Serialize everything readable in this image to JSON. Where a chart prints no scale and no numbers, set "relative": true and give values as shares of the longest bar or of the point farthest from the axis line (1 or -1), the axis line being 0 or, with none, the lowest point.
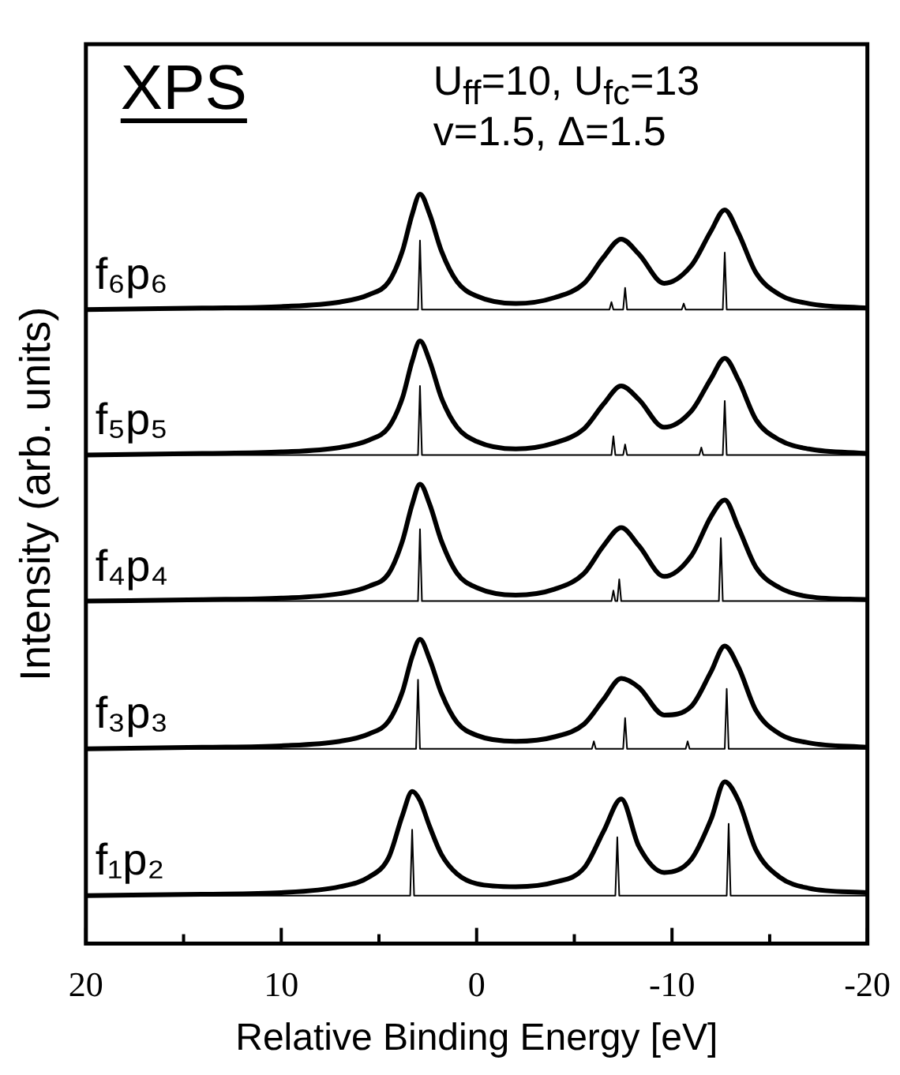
{
  "chart_data": {
    "type": "line",
    "relative": true,
    "title": "XPS",
    "xlabel": "Relative Binding Energy [eV]",
    "ylabel": "Intensity (arb. units)",
    "annotations": [
      "U$_{ff}$=10, U$_{fc}$=13",
      "v=1.5, Δ=1.5"
    ],
    "xlim": [
      20,
      -20
    ],
    "xticks": [
      20,
      {
        "value": 15,
        "label": null
      },
      10,
      {
        "value": 5,
        "label": null
      },
      0,
      {
        "value": -5,
        "label": null
      },
      -10,
      {
        "value": -15,
        "label": null
      },
      -20
    ],
    "grid": false,
    "legend": false,
    "marker": "none",
    "line_style": "solid",
    "series": [
      {
        "name": "f₆p₆",
        "color": "#000000",
        "x": [
          20,
          14,
          10,
          7,
          5.5,
          4.5,
          3.8,
          3.3,
          2.9,
          2.4,
          1.8,
          1,
          0,
          -2,
          -4,
          -5.5,
          -6.5,
          -7.4,
          -8.3,
          -9.6,
          -11,
          -12,
          -12.7,
          -13.4,
          -14.3,
          -15.5,
          -17,
          -20
        ],
        "values": [
          0.846,
          0.848,
          0.85,
          0.856,
          0.866,
          0.883,
          0.924,
          0.973,
          1.0,
          0.973,
          0.924,
          0.883,
          0.864,
          0.854,
          0.862,
          0.881,
          0.916,
          0.94,
          0.92,
          0.881,
          0.905,
          0.951,
          0.979,
          0.948,
          0.895,
          0.866,
          0.854,
          0.848
        ]
      },
      {
        "color": "#000000",
        "x": [
          20,
          3.0,
          2.9,
          2.8,
          -6.8,
          -6.9,
          -7.0,
          -7.5,
          -7.6,
          -7.7,
          -10.5,
          -10.6,
          -10.7,
          -12.6,
          -12.7,
          -12.8,
          -20
        ],
        "values": [
          0.846,
          0.846,
          0.938,
          0.846,
          0.846,
          0.856,
          0.846,
          0.846,
          0.875,
          0.846,
          0.846,
          0.854,
          0.846,
          0.846,
          0.922,
          0.846,
          0.846
        ]
      },
      {
        "name": "f₅p₅",
        "color": "#000000",
        "x": [
          20,
          14,
          10,
          7,
          5.5,
          4.5,
          3.8,
          3.3,
          2.9,
          2.4,
          1.8,
          1,
          0,
          -2,
          -4,
          -5.5,
          -6.5,
          -7.4,
          -8.3,
          -9.6,
          -11,
          -12,
          -12.7,
          -13.4,
          -14.3,
          -15.5,
          -17,
          -20
        ],
        "values": [
          0.652,
          0.654,
          0.656,
          0.662,
          0.672,
          0.689,
          0.728,
          0.777,
          0.804,
          0.777,
          0.728,
          0.689,
          0.67,
          0.66,
          0.668,
          0.687,
          0.72,
          0.744,
          0.726,
          0.689,
          0.711,
          0.754,
          0.781,
          0.752,
          0.699,
          0.672,
          0.66,
          0.654
        ]
      },
      {
        "color": "#000000",
        "x": [
          20,
          3.0,
          2.9,
          2.8,
          -6.9,
          -7.0,
          -7.1,
          -7.5,
          -7.6,
          -7.7,
          -11.4,
          -11.5,
          -11.6,
          -12.6,
          -12.7,
          -12.8,
          -20
        ],
        "values": [
          0.652,
          0.652,
          0.744,
          0.652,
          0.652,
          0.677,
          0.652,
          0.652,
          0.666,
          0.652,
          0.652,
          0.662,
          0.652,
          0.652,
          0.724,
          0.652,
          0.652
        ]
      },
      {
        "name": "f₄p₄",
        "color": "#000000",
        "x": [
          20,
          14,
          10,
          7,
          5.5,
          4.5,
          3.8,
          3.3,
          2.9,
          2.4,
          1.8,
          1,
          0,
          -2,
          -4,
          -5.5,
          -6.5,
          -7.4,
          -8.3,
          -9.6,
          -11,
          -12,
          -12.7,
          -13.4,
          -14.3,
          -15.5,
          -17,
          -20
        ],
        "values": [
          0.457,
          0.459,
          0.461,
          0.467,
          0.477,
          0.494,
          0.537,
          0.586,
          0.613,
          0.586,
          0.537,
          0.494,
          0.475,
          0.465,
          0.473,
          0.494,
          0.531,
          0.555,
          0.531,
          0.49,
          0.518,
          0.57,
          0.592,
          0.555,
          0.502,
          0.475,
          0.463,
          0.459
        ]
      },
      {
        "color": "#000000",
        "x": [
          20,
          3.0,
          2.9,
          2.8,
          -6.9,
          -7.0,
          -7.1,
          -7.2,
          -7.3,
          -7.4,
          -12.4,
          -12.5,
          -12.6,
          -20
        ],
        "values": [
          0.457,
          0.457,
          0.553,
          0.457,
          0.457,
          0.471,
          0.457,
          0.457,
          0.486,
          0.457,
          0.457,
          0.541,
          0.457,
          0.457
        ]
      },
      {
        "name": "f₃p₃",
        "color": "#000000",
        "x": [
          20,
          14,
          10,
          7,
          5.5,
          4.5,
          3.8,
          3.3,
          2.9,
          2.4,
          1.8,
          1,
          0,
          -2,
          -4,
          -5.5,
          -6.5,
          -7.4,
          -8.3,
          -9.6,
          -11,
          -12,
          -12.7,
          -13.4,
          -14.3,
          -15.5,
          -17,
          -20
        ],
        "values": [
          0.26,
          0.262,
          0.264,
          0.27,
          0.28,
          0.297,
          0.336,
          0.383,
          0.406,
          0.379,
          0.334,
          0.295,
          0.278,
          0.27,
          0.276,
          0.293,
          0.326,
          0.354,
          0.342,
          0.305,
          0.317,
          0.363,
          0.397,
          0.369,
          0.311,
          0.28,
          0.268,
          0.262
        ]
      },
      {
        "color": "#000000",
        "x": [
          20,
          3.1,
          3.0,
          2.9,
          -5.9,
          -6.0,
          -6.1,
          -7.5,
          -7.6,
          -7.7,
          -10.7,
          -10.8,
          -10.9,
          -12.7,
          -12.8,
          -12.9,
          -20
        ],
        "values": [
          0.26,
          0.26,
          0.352,
          0.26,
          0.26,
          0.27,
          0.26,
          0.26,
          0.301,
          0.26,
          0.26,
          0.27,
          0.26,
          0.26,
          0.34,
          0.26,
          0.26
        ]
      },
      {
        "name": "f₁p₂",
        "color": "#000000",
        "x": [
          20,
          14,
          10,
          7,
          5.5,
          4.5,
          3.8,
          3.3,
          2.9,
          2.4,
          1.8,
          1,
          0,
          -2,
          -4,
          -5.5,
          -6.5,
          -7.4,
          -8.3,
          -9.6,
          -11,
          -12,
          -12.7,
          -13.4,
          -14.3,
          -15.5,
          -17,
          -20
        ],
        "values": [
          0.064,
          0.066,
          0.068,
          0.076,
          0.089,
          0.115,
          0.171,
          0.203,
          0.191,
          0.156,
          0.119,
          0.093,
          0.08,
          0.076,
          0.082,
          0.101,
          0.15,
          0.193,
          0.13,
          0.095,
          0.113,
          0.166,
          0.216,
          0.191,
          0.125,
          0.089,
          0.074,
          0.068
        ]
      },
      {
        "color": "#000000",
        "x": [
          20,
          3.4,
          3.3,
          3.2,
          -7.1,
          -7.2,
          -7.3,
          -12.8,
          -12.9,
          -13.0,
          -20
        ],
        "values": [
          0.064,
          0.064,
          0.152,
          0.064,
          0.064,
          0.142,
          0.064,
          0.064,
          0.16,
          0.064,
          0.064
        ]
      }
    ]
  }
}
